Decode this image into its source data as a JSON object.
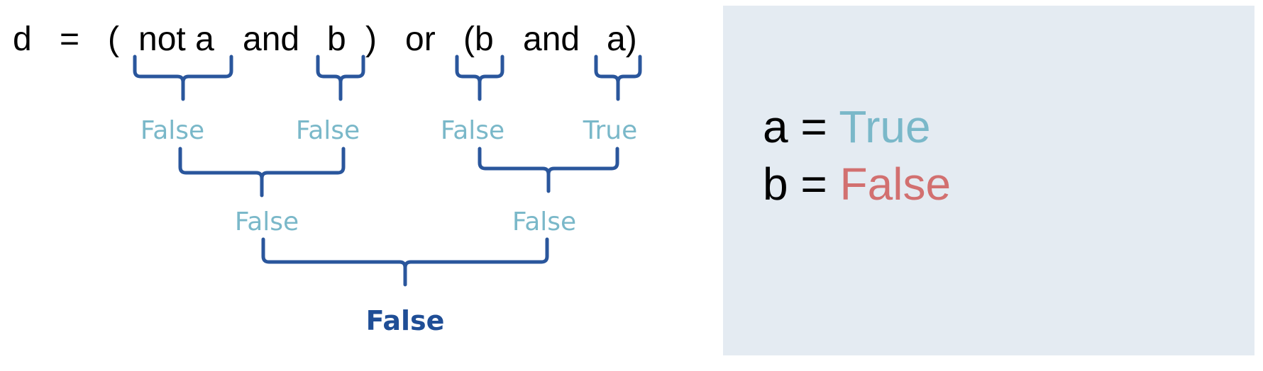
{
  "expression": {
    "lhs": "d",
    "equals": "=",
    "open_paren": "(",
    "not_a": "not a",
    "and_1": "and",
    "b_1": "b",
    "close_paren": ")",
    "or_op": "or",
    "open_b": "(b",
    "and_2": "and",
    "a_close": "a)"
  },
  "level1": {
    "not_a_value": "False",
    "b_value": "False",
    "b2_value": "False",
    "a_value": "True"
  },
  "level2": {
    "left_and_value": "False",
    "right_and_value": "False"
  },
  "result": {
    "value": "False"
  },
  "panel": {
    "line_a": {
      "var": "a",
      "eq": "=",
      "value": "True"
    },
    "line_b": {
      "var": "b",
      "eq": "=",
      "value": "False"
    }
  },
  "colors": {
    "brace": "#2a569c",
    "intermediate_text": "#7ab8c9",
    "final_text": "#1f4e96",
    "true_value": "#7ab8c9",
    "false_value": "#d27070",
    "panel_bg": "#e4ebf2"
  }
}
